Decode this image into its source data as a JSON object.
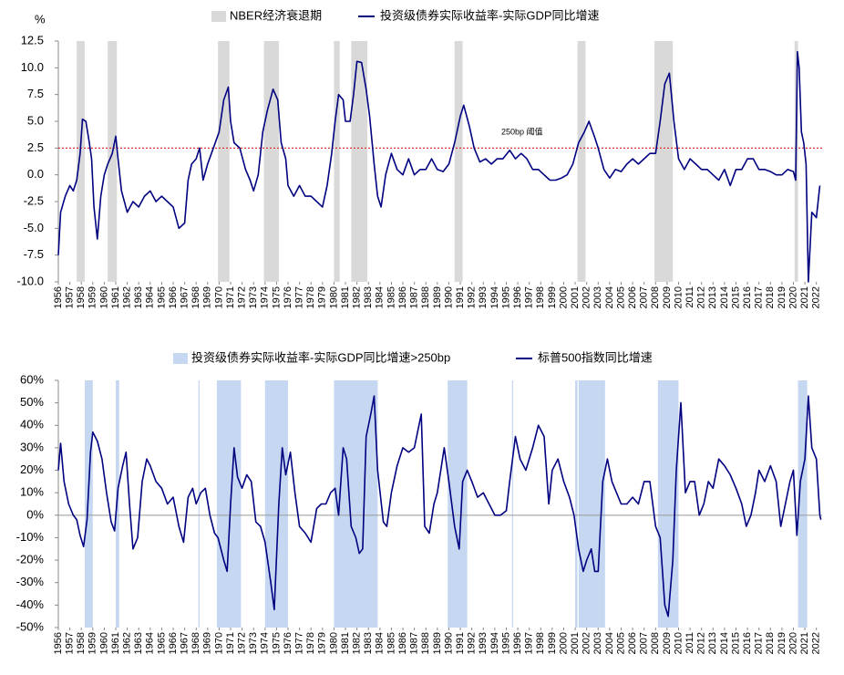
{
  "chart_data": [
    {
      "type": "line",
      "unit": "%",
      "xlim": [
        1956,
        2022.5
      ],
      "xticks": [
        1956,
        1957,
        1958,
        1959,
        1960,
        1961,
        1962,
        1963,
        1964,
        1965,
        1966,
        1967,
        1968,
        1969,
        1970,
        1971,
        1972,
        1973,
        1974,
        1975,
        1976,
        1977,
        1978,
        1979,
        1980,
        1981,
        1982,
        1983,
        1984,
        1985,
        1986,
        1987,
        1988,
        1989,
        1990,
        1991,
        1992,
        1993,
        1994,
        1995,
        1996,
        1997,
        1998,
        1999,
        2000,
        2001,
        2002,
        2003,
        2004,
        2005,
        2006,
        2007,
        2008,
        2009,
        2010,
        2011,
        2012,
        2013,
        2014,
        2015,
        2016,
        2017,
        2018,
        2019,
        2020,
        2021,
        2022
      ],
      "ylim": [
        -10,
        12.5
      ],
      "yticks": [
        {
          "value": 12.5,
          "label": "12.5"
        },
        {
          "value": 10,
          "label": "10.0"
        },
        {
          "value": 7.5,
          "label": "7.5"
        },
        {
          "value": 5,
          "label": "5.0"
        },
        {
          "value": 2.5,
          "label": "2.5"
        },
        {
          "value": 0,
          "label": "0.0"
        },
        {
          "value": -2.5,
          "label": "-2.5"
        },
        {
          "value": -5,
          "label": "-5.0"
        },
        {
          "value": -7.5,
          "label": "-7.5"
        },
        {
          "value": -10,
          "label": "-10.0"
        }
      ],
      "shading": {
        "name": "NBER经济衰退期",
        "color": "#d9d9d9",
        "periods": [
          [
            1957.6,
            1958.3
          ],
          [
            1960.3,
            1961.1
          ],
          [
            1969.9,
            1970.9
          ],
          [
            1973.9,
            1975.2
          ],
          [
            1980.0,
            1980.5
          ],
          [
            1981.5,
            1982.9
          ],
          [
            1990.5,
            1991.2
          ],
          [
            2001.2,
            2001.9
          ],
          [
            2007.9,
            2009.5
          ],
          [
            2020.1,
            2020.4
          ]
        ]
      },
      "threshold": {
        "value": 2.5,
        "label": "250bp 阈值",
        "color": "#e02020"
      },
      "series": [
        {
          "name": "投资级债券实际收益率-实际GDP同比增速",
          "color": "#000080",
          "x": [
            1956,
            1956.2,
            1956.6,
            1957,
            1957.3,
            1957.6,
            1957.9,
            1958.1,
            1958.4,
            1958.7,
            1958.9,
            1959.1,
            1959.4,
            1959.7,
            1960,
            1960.3,
            1960.7,
            1961,
            1961.2,
            1961.5,
            1962,
            1962.5,
            1963,
            1963.5,
            1964,
            1964.5,
            1965,
            1965.5,
            1966,
            1966.5,
            1967,
            1967.3,
            1967.6,
            1968,
            1968.3,
            1968.6,
            1969,
            1969.5,
            1970,
            1970.4,
            1970.8,
            1971,
            1971.3,
            1971.8,
            1972.3,
            1972.7,
            1973,
            1973.4,
            1973.8,
            1974.2,
            1974.7,
            1975.1,
            1975.4,
            1975.8,
            1976,
            1976.5,
            1977,
            1977.5,
            1978,
            1978.5,
            1979,
            1979.4,
            1979.8,
            1980.1,
            1980.4,
            1980.8,
            1981,
            1981.4,
            1981.7,
            1982,
            1982.4,
            1982.8,
            1983.1,
            1983.5,
            1983.8,
            1984.1,
            1984.5,
            1985,
            1985.5,
            1986,
            1986.5,
            1987,
            1987.5,
            1988,
            1988.5,
            1989,
            1989.5,
            1990,
            1990.5,
            1991,
            1991.3,
            1991.8,
            1992.2,
            1992.7,
            1993.2,
            1993.7,
            1994.2,
            1994.7,
            1995.3,
            1995.8,
            1996.3,
            1996.8,
            1997.3,
            1997.8,
            1998.3,
            1998.8,
            1999.3,
            1999.8,
            2000.3,
            2000.8,
            2001.3,
            2001.8,
            2002.2,
            2002.7,
            2003,
            2003.5,
            2004,
            2004.5,
            2005,
            2005.5,
            2006,
            2006.5,
            2007,
            2007.5,
            2008,
            2008.4,
            2008.8,
            2009.2,
            2009.6,
            2010,
            2010.5,
            2011,
            2011.5,
            2012,
            2012.5,
            2013,
            2013.5,
            2014,
            2014.5,
            2015,
            2015.5,
            2016,
            2016.5,
            2017,
            2017.5,
            2018,
            2018.5,
            2019,
            2019.5,
            2020,
            2020.2,
            2020.35,
            2020.5,
            2020.7,
            2020.9,
            2021.1,
            2021.3,
            2021.6,
            2022,
            2022.3
          ],
          "values": [
            -7.5,
            -3.5,
            -2,
            -1,
            -1.5,
            -0.5,
            2,
            5.2,
            5,
            3,
            1.5,
            -3,
            -6,
            -2,
            0,
            1,
            2,
            3.6,
            1.5,
            -1.5,
            -3.5,
            -2.5,
            -3,
            -2,
            -1.5,
            -2.5,
            -2,
            -2.5,
            -3,
            -5,
            -4.5,
            -0.5,
            1,
            1.5,
            2.5,
            -0.5,
            1,
            2.5,
            4,
            7,
            8.2,
            5,
            3,
            2.5,
            0.5,
            -0.5,
            -1.5,
            0,
            4,
            6,
            8,
            7,
            3,
            1.5,
            -1,
            -2,
            -1,
            -2,
            -2,
            -2.5,
            -3,
            -1,
            2,
            5,
            7.5,
            7,
            5,
            5,
            7.5,
            10.6,
            10.5,
            8,
            5.5,
            1,
            -2,
            -3,
            0,
            2,
            0.5,
            0,
            1.5,
            0,
            0.5,
            0.5,
            1.5,
            0.5,
            0.3,
            1,
            3,
            5.5,
            6.5,
            4.5,
            2.5,
            1.2,
            1.5,
            1,
            1.5,
            1.5,
            2.3,
            1.5,
            2,
            1.5,
            0.5,
            0.5,
            0,
            -0.5,
            -0.5,
            -0.3,
            0,
            1,
            3,
            4,
            5,
            3.5,
            2.5,
            0.5,
            -0.3,
            0.5,
            0.3,
            1,
            1.5,
            1,
            1.5,
            2,
            2,
            5,
            8.5,
            9.5,
            5,
            1.5,
            0.5,
            1.5,
            1,
            0.5,
            0.5,
            0,
            -0.5,
            0.5,
            -1,
            0.5,
            0.5,
            1.5,
            1.5,
            0.5,
            0.5,
            0.3,
            0,
            0,
            0.5,
            0.3,
            -0.5,
            11.5,
            10,
            4,
            3,
            1,
            -10,
            -3.5,
            -4,
            -1
          ]
        }
      ]
    },
    {
      "type": "line",
      "xlim": [
        1956,
        2022.5
      ],
      "xticks": [
        1956,
        1957,
        1958,
        1959,
        1960,
        1961,
        1962,
        1963,
        1964,
        1965,
        1966,
        1967,
        1968,
        1969,
        1970,
        1971,
        1972,
        1973,
        1974,
        1975,
        1976,
        1977,
        1978,
        1979,
        1980,
        1981,
        1982,
        1983,
        1984,
        1985,
        1986,
        1987,
        1988,
        1989,
        1990,
        1991,
        1992,
        1993,
        1994,
        1995,
        1996,
        1997,
        1998,
        1999,
        2000,
        2001,
        2002,
        2003,
        2004,
        2005,
        2006,
        2007,
        2008,
        2009,
        2010,
        2011,
        2012,
        2013,
        2014,
        2015,
        2016,
        2017,
        2018,
        2019,
        2020,
        2021,
        2022
      ],
      "ylim": [
        -50,
        60
      ],
      "yticks": [
        {
          "value": 60,
          "label": "60%"
        },
        {
          "value": 50,
          "label": "50%"
        },
        {
          "value": 40,
          "label": "40%"
        },
        {
          "value": 30,
          "label": "30%"
        },
        {
          "value": 20,
          "label": "20%"
        },
        {
          "value": 10,
          "label": "10%"
        },
        {
          "value": 0,
          "label": "0%"
        },
        {
          "value": -10,
          "label": "-10%"
        },
        {
          "value": -20,
          "label": "-20%"
        },
        {
          "value": -30,
          "label": "-30%"
        },
        {
          "value": -40,
          "label": "-40%"
        },
        {
          "value": -50,
          "label": "-50%"
        }
      ],
      "shading": {
        "name": "投资级债券实际收益率-实际GDP同比增速>250bp",
        "color": "#c6d8f1",
        "periods": [
          [
            1958.3,
            1959.0
          ],
          [
            1961.0,
            1961.3
          ],
          [
            1968.2,
            1968.3
          ],
          [
            1969.8,
            1971.9
          ],
          [
            1974.0,
            1976.0
          ],
          [
            1980.0,
            1983.8
          ],
          [
            1989.9,
            1991.6
          ],
          [
            1995.5,
            1995.6
          ],
          [
            2001.0,
            2001.2
          ],
          [
            2001.3,
            2003.6
          ],
          [
            2008.2,
            2010.0
          ],
          [
            2020.4,
            2021.2
          ]
        ]
      },
      "series": [
        {
          "name": "标普500指数同比增速",
          "color": "#000080",
          "x": [
            1956,
            1956.2,
            1956.5,
            1956.9,
            1957.3,
            1957.6,
            1957.9,
            1958.2,
            1958.5,
            1958.8,
            1959,
            1959.4,
            1959.8,
            1960.2,
            1960.6,
            1960.9,
            1961.2,
            1961.6,
            1961.9,
            1962.2,
            1962.5,
            1962.9,
            1963.3,
            1963.7,
            1964,
            1964.5,
            1965,
            1965.5,
            1966,
            1966.5,
            1966.9,
            1967.3,
            1967.7,
            1968,
            1968.4,
            1968.8,
            1969.2,
            1969.6,
            1969.9,
            1970.4,
            1970.7,
            1971,
            1971.3,
            1971.6,
            1972,
            1972.4,
            1972.8,
            1973.2,
            1973.6,
            1974,
            1974.5,
            1974.8,
            1975.2,
            1975.5,
            1975.8,
            1976.2,
            1976.6,
            1977,
            1977.5,
            1978,
            1978.5,
            1978.9,
            1979.3,
            1979.7,
            1980.1,
            1980.4,
            1980.8,
            1981.1,
            1981.5,
            1981.9,
            1982.2,
            1982.5,
            1982.8,
            1983.2,
            1983.5,
            1983.8,
            1984.3,
            1984.6,
            1985,
            1985.5,
            1986,
            1986.5,
            1987,
            1987.6,
            1987.9,
            1988.3,
            1988.7,
            1989,
            1989.6,
            1990,
            1990.5,
            1990.9,
            1991.2,
            1991.6,
            1992,
            1992.5,
            1993,
            1993.5,
            1994,
            1994.5,
            1995,
            1995.3,
            1995.8,
            1996.2,
            1996.7,
            1997.3,
            1997.8,
            1998.3,
            1998.7,
            1999,
            1999.5,
            2000,
            2000.5,
            2000.9,
            2001.3,
            2001.7,
            2002,
            2002.4,
            2002.7,
            2003,
            2003.4,
            2003.8,
            2004.2,
            2004.6,
            2005,
            2005.5,
            2006,
            2006.5,
            2007,
            2007.5,
            2008,
            2008.4,
            2008.8,
            2009.1,
            2009.5,
            2009.8,
            2010.2,
            2010.6,
            2011,
            2011.4,
            2011.8,
            2012.2,
            2012.6,
            2013,
            2013.5,
            2014,
            2014.5,
            2015,
            2015.5,
            2015.9,
            2016.3,
            2016.7,
            2017,
            2017.5,
            2018,
            2018.5,
            2018.9,
            2019.3,
            2019.7,
            2020,
            2020.3,
            2020.6,
            2021,
            2021.3,
            2021.6,
            2022,
            2022.3,
            2022.4
          ],
          "values": [
            20,
            32,
            15,
            5,
            0,
            -2,
            -9,
            -14,
            -2,
            28,
            37,
            33,
            25,
            10,
            -3,
            -7,
            12,
            22,
            28,
            5,
            -15,
            -10,
            15,
            25,
            22,
            15,
            12,
            5,
            8,
            -5,
            -12,
            8,
            12,
            5,
            10,
            12,
            0,
            -8,
            -10,
            -20,
            -25,
            5,
            30,
            17,
            12,
            18,
            15,
            -3,
            -5,
            -12,
            -30,
            -42,
            5,
            30,
            18,
            28,
            10,
            -5,
            -8,
            -12,
            3,
            5,
            5,
            10,
            12,
            0,
            30,
            25,
            -5,
            -10,
            -17,
            -15,
            35,
            45,
            53,
            20,
            -3,
            -5,
            10,
            22,
            30,
            28,
            30,
            45,
            -5,
            -8,
            5,
            10,
            30,
            15,
            -5,
            -15,
            15,
            20,
            15,
            8,
            10,
            5,
            0,
            0,
            2,
            15,
            35,
            25,
            20,
            30,
            40,
            35,
            5,
            20,
            25,
            15,
            8,
            0,
            -15,
            -25,
            -20,
            -15,
            -25,
            -25,
            15,
            25,
            15,
            10,
            5,
            5,
            8,
            5,
            15,
            15,
            -5,
            -10,
            -40,
            -45,
            -20,
            20,
            50,
            10,
            15,
            15,
            0,
            5,
            15,
            12,
            25,
            22,
            18,
            12,
            5,
            -5,
            0,
            10,
            20,
            15,
            22,
            15,
            -5,
            5,
            15,
            20,
            -9,
            15,
            25,
            53,
            30,
            25,
            0,
            -2
          ]
        }
      ]
    }
  ]
}
